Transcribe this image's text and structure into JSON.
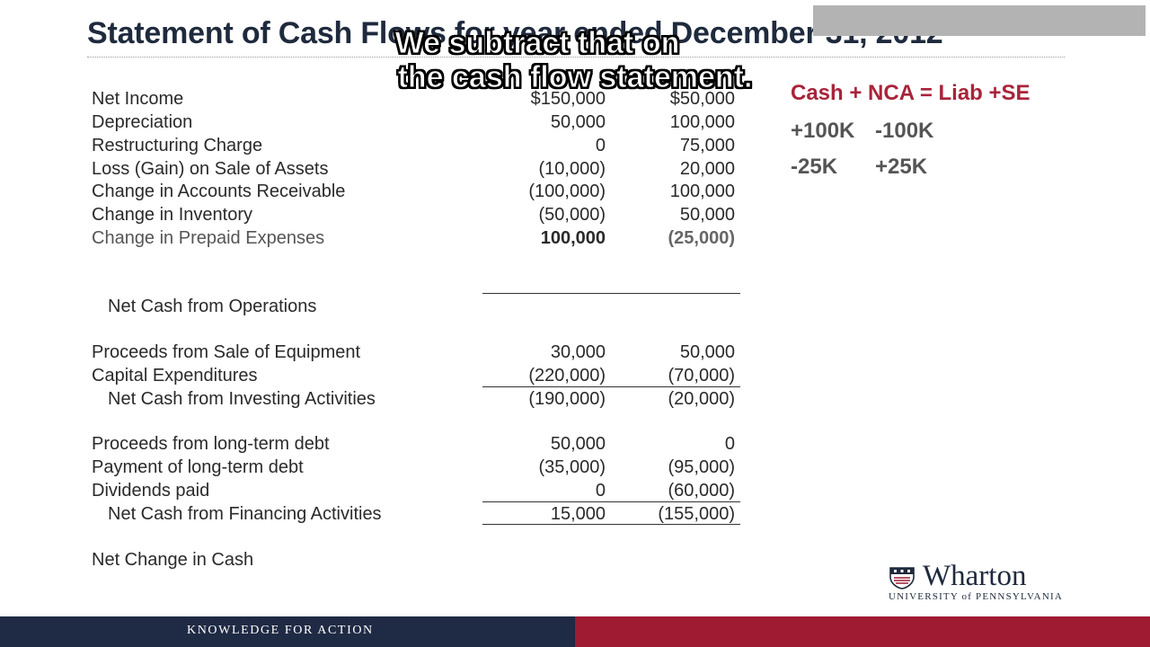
{
  "slide": {
    "title": "Statement of Cash Flows for year ended December 31, 2012",
    "caption_line1": "We subtract that on",
    "caption_line2": "the cash flow statement."
  },
  "statement": {
    "rows": [
      {
        "label": "Net Income",
        "col1": "$150,000",
        "col2": "$50,000"
      },
      {
        "label": "Depreciation",
        "col1": "50,000",
        "col2": "100,000"
      },
      {
        "label": "Restructuring Charge",
        "col1": "0",
        "col2": "75,000"
      },
      {
        "label": "Loss (Gain) on Sale of Assets",
        "col1": "(10,000)",
        "col2": "20,000"
      },
      {
        "label": "Change in Accounts Receivable",
        "col1": "(100,000)",
        "col2": "100,000"
      },
      {
        "label": "Change in Inventory",
        "col1": "(50,000)",
        "col2": "50,000"
      },
      {
        "label": "Change in Prepaid Expenses",
        "col1": "100,000",
        "col2": "(25,000)"
      },
      {
        "label": "Net Cash from Operations",
        "col1": "",
        "col2": ""
      },
      {
        "label": "Proceeds from Sale of Equipment",
        "col1": "30,000",
        "col2": "50,000"
      },
      {
        "label": "Capital Expenditures",
        "col1": "(220,000)",
        "col2": "(70,000)"
      },
      {
        "label": "Net Cash from Investing Activities",
        "col1": "(190,000)",
        "col2": "(20,000)"
      },
      {
        "label": "Proceeds from long-term debt",
        "col1": "50,000",
        "col2": "0"
      },
      {
        "label": "Payment of long-term debt",
        "col1": "(35,000)",
        "col2": "(95,000)"
      },
      {
        "label": "Dividends paid",
        "col1": "0",
        "col2": "(60,000)"
      },
      {
        "label": "Net Cash from Financing Activities",
        "col1": "15,000",
        "col2": "(155,000)"
      },
      {
        "label": "Net Change in Cash",
        "col1": "",
        "col2": ""
      }
    ]
  },
  "equation": {
    "main": "Cash + NCA = Liab +SE",
    "line1_a": "+100K",
    "line1_b": "-100K",
    "line2_a": "-25K",
    "line2_b": "+25K",
    "main_color": "#a8243a"
  },
  "logo": {
    "name": "Wharton",
    "subtitle": "UNIVERSITY of PENNSYLVANIA"
  },
  "footer": {
    "tagline": "KNOWLEDGE FOR ACTION",
    "left_color": "#1f2a44",
    "right_color": "#9e1b32"
  }
}
